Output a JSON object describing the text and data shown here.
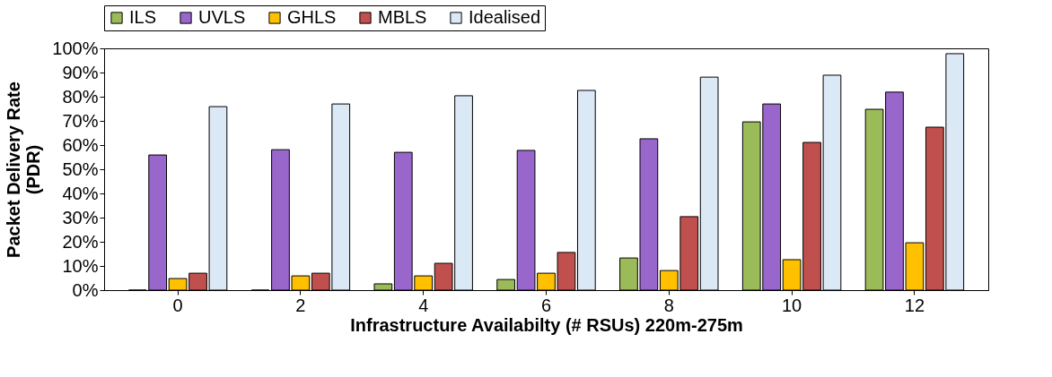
{
  "chart_data": {
    "type": "bar",
    "xlabel": "Infrastructure Availabilty (# RSUs) 220m-275m",
    "ylabel": "Packet Delivery Rate\n(PDR)",
    "categories": [
      "0",
      "2",
      "4",
      "6",
      "8",
      "10",
      "12"
    ],
    "series": [
      {
        "name": "ILS",
        "color": "#9bbb59",
        "values": [
          0,
          0,
          2.6,
          4.4,
          13.3,
          69.6,
          74.8
        ]
      },
      {
        "name": "UVLS",
        "color": "#9966cc",
        "values": [
          55.9,
          58.1,
          57,
          57.8,
          62.6,
          77,
          81.9
        ]
      },
      {
        "name": "GHLS",
        "color": "#ffc000",
        "values": [
          4.8,
          5.9,
          5.9,
          7,
          8.1,
          12.6,
          19.6
        ]
      },
      {
        "name": "MBLS",
        "color": "#c0504d",
        "values": [
          7,
          7,
          11.1,
          15.6,
          30.4,
          61.1,
          67.4
        ]
      },
      {
        "name": "Idealised",
        "color": "#dbe8f5",
        "values": [
          75.9,
          77,
          80.4,
          82.6,
          88.1,
          88.9,
          97.8
        ]
      }
    ],
    "ylim": [
      0,
      100
    ],
    "yticks": [
      {
        "value": 0,
        "label": "0%"
      },
      {
        "value": 10,
        "label": "10%"
      },
      {
        "value": 20,
        "label": "20%"
      },
      {
        "value": 30,
        "label": "30%"
      },
      {
        "value": 40,
        "label": "40%"
      },
      {
        "value": 50,
        "label": "50%"
      },
      {
        "value": 60,
        "label": "60%"
      },
      {
        "value": 70,
        "label": "70%"
      },
      {
        "value": 80,
        "label": "80%"
      },
      {
        "value": 90,
        "label": "90%"
      },
      {
        "value": 100,
        "label": "100%"
      }
    ],
    "grid": false,
    "legend": "top"
  }
}
